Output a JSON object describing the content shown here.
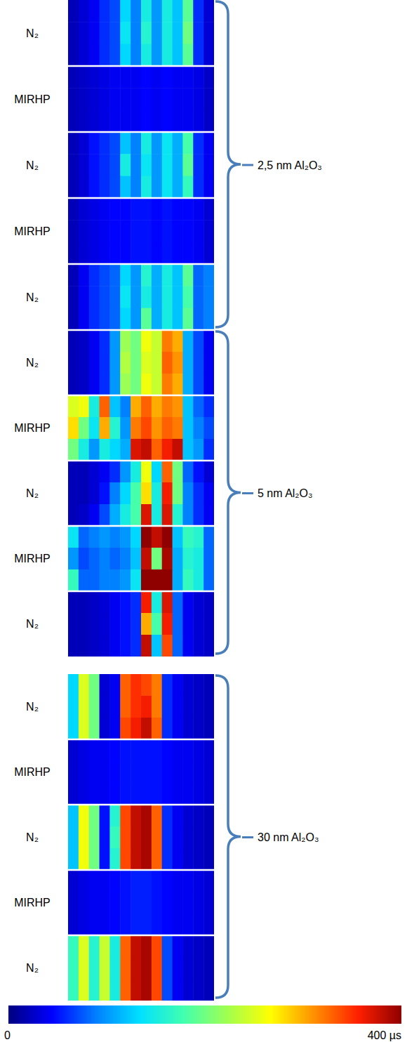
{
  "chart_data": {
    "type": "heatmap",
    "groups": [
      {
        "label": "2,5 nm Al₂O₃",
        "panels": [
          {
            "label": "N₂",
            "cells": [
              [
                20,
                30,
                40,
                60,
                70,
                130,
                90,
                150,
                100,
                150,
                120,
                190,
                60,
                30
              ],
              [
                20,
                30,
                40,
                60,
                70,
                140,
                90,
                160,
                100,
                150,
                120,
                200,
                60,
                30
              ],
              [
                20,
                30,
                40,
                60,
                70,
                130,
                90,
                150,
                100,
                150,
                120,
                190,
                60,
                30
              ]
            ]
          },
          {
            "label": "MIRHP",
            "cells": [
              [
                20,
                25,
                30,
                35,
                40,
                40,
                40,
                45,
                40,
                45,
                40,
                40,
                35,
                25
              ],
              [
                20,
                25,
                30,
                35,
                40,
                40,
                40,
                45,
                40,
                45,
                40,
                40,
                35,
                25
              ],
              [
                20,
                25,
                30,
                35,
                40,
                40,
                40,
                45,
                40,
                45,
                40,
                40,
                35,
                25
              ]
            ]
          },
          {
            "label": "N₂",
            "cells": [
              [
                20,
                30,
                50,
                60,
                70,
                120,
                90,
                150,
                100,
                140,
                110,
                180,
                60,
                40
              ],
              [
                20,
                30,
                50,
                60,
                70,
                150,
                90,
                140,
                100,
                140,
                110,
                190,
                60,
                40
              ],
              [
                20,
                30,
                50,
                60,
                70,
                120,
                90,
                150,
                100,
                140,
                110,
                170,
                60,
                40
              ]
            ]
          },
          {
            "label": "MIRHP",
            "cells": [
              [
                20,
                30,
                35,
                40,
                45,
                45,
                50,
                50,
                45,
                50,
                45,
                45,
                40,
                30
              ],
              [
                20,
                30,
                35,
                40,
                45,
                45,
                50,
                50,
                45,
                50,
                45,
                45,
                40,
                30
              ],
              [
                20,
                30,
                35,
                40,
                45,
                45,
                50,
                50,
                45,
                50,
                45,
                45,
                40,
                30
              ]
            ]
          },
          {
            "label": "N₂",
            "cells": [
              [
                20,
                40,
                60,
                70,
                80,
                130,
                100,
                160,
                110,
                150,
                120,
                190,
                80,
                90
              ],
              [
                20,
                40,
                60,
                70,
                80,
                140,
                100,
                150,
                110,
                150,
                120,
                180,
                80,
                90
              ],
              [
                20,
                40,
                60,
                70,
                80,
                130,
                100,
                190,
                110,
                150,
                120,
                190,
                80,
                90
              ]
            ]
          }
        ]
      },
      {
        "label": "5 nm Al₂O₃",
        "panels": [
          {
            "label": "N₂",
            "cells": [
              [
                20,
                25,
                40,
                60,
                100,
                220,
                200,
                260,
                240,
                320,
                300,
                110,
                70,
                40
              ],
              [
                20,
                25,
                40,
                60,
                100,
                230,
                200,
                250,
                240,
                330,
                310,
                110,
                70,
                40
              ],
              [
                20,
                25,
                40,
                60,
                100,
                220,
                200,
                260,
                240,
                320,
                300,
                110,
                70,
                40
              ]
            ]
          },
          {
            "label": "MIRHP",
            "cells": [
              [
                250,
                260,
                150,
                330,
                120,
                90,
                300,
                330,
                300,
                320,
                310,
                120,
                80,
                60
              ],
              [
                280,
                200,
                140,
                300,
                160,
                100,
                320,
                340,
                310,
                330,
                320,
                120,
                90,
                70
              ],
              [
                200,
                150,
                100,
                150,
                130,
                110,
                370,
                380,
                330,
                360,
                380,
                120,
                100,
                60
              ]
            ]
          },
          {
            "label": "N₂",
            "cells": [
              [
                20,
                20,
                30,
                40,
                60,
                100,
                150,
                260,
                130,
                330,
                200,
                80,
                50,
                30
              ],
              [
                20,
                20,
                30,
                50,
                90,
                130,
                180,
                280,
                150,
                360,
                200,
                90,
                60,
                40
              ],
              [
                20,
                25,
                40,
                70,
                110,
                150,
                180,
                370,
                150,
                370,
                160,
                90,
                60,
                40
              ]
            ]
          },
          {
            "label": "MIRHP",
            "cells": [
              [
                140,
                80,
                90,
                100,
                90,
                100,
                130,
                400,
                380,
                400,
                120,
                170,
                160,
                80
              ],
              [
                100,
                70,
                80,
                90,
                80,
                90,
                120,
                380,
                200,
                390,
                110,
                160,
                150,
                80
              ],
              [
                170,
                80,
                80,
                90,
                90,
                100,
                140,
                400,
                400,
                400,
                110,
                170,
                150,
                80
              ]
            ]
          },
          {
            "label": "N₂",
            "cells": [
              [
                20,
                20,
                25,
                30,
                40,
                50,
                60,
                360,
                150,
                370,
                80,
                40,
                30,
                25
              ],
              [
                20,
                20,
                25,
                30,
                40,
                50,
                60,
                300,
                180,
                360,
                80,
                40,
                30,
                25
              ],
              [
                20,
                20,
                25,
                30,
                40,
                50,
                60,
                380,
                120,
                340,
                80,
                40,
                30,
                25
              ]
            ]
          }
        ]
      },
      {
        "label": "30 nm Al₂O₃",
        "panels": [
          {
            "label": "N₂",
            "cells": [
              [
                130,
                250,
                200,
                30,
                40,
                330,
                350,
                340,
                320,
                60,
                40,
                30,
                25,
                20
              ],
              [
                130,
                250,
                200,
                30,
                40,
                330,
                350,
                360,
                320,
                60,
                40,
                30,
                25,
                20
              ],
              [
                130,
                250,
                200,
                30,
                40,
                340,
                360,
                380,
                330,
                60,
                40,
                30,
                25,
                20
              ]
            ]
          },
          {
            "label": "MIRHP",
            "cells": [
              [
                30,
                35,
                40,
                40,
                45,
                50,
                50,
                50,
                50,
                45,
                40,
                40,
                35,
                30
              ],
              [
                30,
                35,
                40,
                40,
                45,
                50,
                50,
                50,
                50,
                45,
                40,
                40,
                35,
                30
              ],
              [
                30,
                35,
                40,
                40,
                45,
                50,
                50,
                50,
                50,
                45,
                40,
                40,
                35,
                30
              ]
            ]
          },
          {
            "label": "N₂",
            "cells": [
              [
                120,
                260,
                200,
                50,
                160,
                340,
                380,
                390,
                330,
                60,
                40,
                30,
                25,
                20
              ],
              [
                120,
                260,
                200,
                50,
                170,
                340,
                380,
                390,
                330,
                60,
                40,
                30,
                25,
                20
              ],
              [
                120,
                260,
                200,
                50,
                160,
                340,
                380,
                390,
                330,
                60,
                40,
                30,
                25,
                20
              ]
            ]
          },
          {
            "label": "MIRHP",
            "cells": [
              [
                30,
                35,
                40,
                40,
                45,
                50,
                55,
                55,
                50,
                45,
                40,
                40,
                35,
                30
              ],
              [
                30,
                35,
                40,
                40,
                45,
                50,
                55,
                55,
                50,
                45,
                40,
                40,
                35,
                30
              ],
              [
                30,
                35,
                40,
                40,
                45,
                50,
                55,
                55,
                50,
                45,
                40,
                40,
                35,
                30
              ]
            ]
          },
          {
            "label": "N₂",
            "cells": [
              [
                170,
                250,
                160,
                240,
                150,
                330,
                380,
                390,
                340,
                70,
                40,
                30,
                25,
                20
              ],
              [
                170,
                250,
                160,
                240,
                150,
                330,
                380,
                390,
                340,
                70,
                40,
                30,
                25,
                20
              ],
              [
                170,
                250,
                160,
                240,
                150,
                330,
                380,
                390,
                340,
                70,
                40,
                30,
                25,
                20
              ]
            ]
          }
        ]
      }
    ],
    "colorbar": {
      "range": [
        0,
        400
      ],
      "ticks": [
        0,
        {
          "value": 400,
          "label": "400 µs"
        }
      ]
    }
  }
}
